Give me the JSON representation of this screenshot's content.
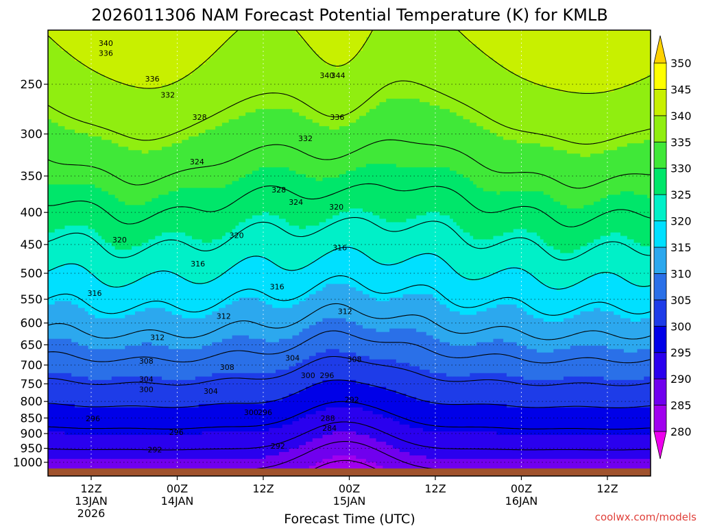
{
  "chart_data": {
    "type": "heatmap",
    "title": "2026011306 NAM Forecast Potential Temperature (K) for KMLB",
    "xlabel": "Forecast Time (UTC)",
    "ylabel": "",
    "y_scale": "log-pressure",
    "ylim": [
      1010,
      205
    ],
    "y_ticks": [
      250,
      300,
      350,
      400,
      450,
      500,
      550,
      600,
      650,
      700,
      750,
      800,
      850,
      900,
      950,
      1000
    ],
    "x_ticks": [
      {
        "label": "12Z",
        "date": "13JAN",
        "year": "2026"
      },
      {
        "label": "00Z",
        "date": "14JAN",
        "year": ""
      },
      {
        "label": "12Z",
        "date": "",
        "year": ""
      },
      {
        "label": "00Z",
        "date": "15JAN",
        "year": ""
      },
      {
        "label": "12Z",
        "date": "",
        "year": ""
      },
      {
        "label": "00Z",
        "date": "16JAN",
        "year": ""
      },
      {
        "label": "12Z",
        "date": "",
        "year": ""
      }
    ],
    "colorbar": {
      "unit": "K",
      "levels": [
        280,
        285,
        290,
        295,
        300,
        305,
        310,
        315,
        320,
        325,
        330,
        335,
        340,
        345,
        350
      ],
      "colors": [
        "#ee00ee",
        "#a000ee",
        "#7000ee",
        "#2a00ee",
        "#0000e8",
        "#1e3ce8",
        "#2a70e8",
        "#2ca8ee",
        "#00e0ff",
        "#00f0c8",
        "#00e66a",
        "#40e838",
        "#90ee10",
        "#c8f000",
        "#ffff00",
        "#ffd200"
      ]
    },
    "contour_labels": [
      {
        "value": 340,
        "t": 0.17,
        "p": 215
      },
      {
        "value": 336,
        "t": 0.17,
        "p": 223
      },
      {
        "value": 336,
        "t": 0.71,
        "p": 245
      },
      {
        "value": 332,
        "t": 0.89,
        "p": 260
      },
      {
        "value": 328,
        "t": 1.26,
        "p": 282
      },
      {
        "value": 340,
        "t": 2.74,
        "p": 242
      },
      {
        "value": 344,
        "t": 2.87,
        "p": 242
      },
      {
        "value": 336,
        "t": 2.86,
        "p": 282
      },
      {
        "value": 332,
        "t": 2.49,
        "p": 305
      },
      {
        "value": 324,
        "t": 1.23,
        "p": 332
      },
      {
        "value": 328,
        "t": 2.18,
        "p": 368
      },
      {
        "value": 324,
        "t": 2.38,
        "p": 385
      },
      {
        "value": 320,
        "t": 2.85,
        "p": 392
      },
      {
        "value": 320,
        "t": 0.33,
        "p": 442
      },
      {
        "value": 320,
        "t": 1.69,
        "p": 435
      },
      {
        "value": 316,
        "t": 1.24,
        "p": 483
      },
      {
        "value": 316,
        "t": 2.89,
        "p": 455
      },
      {
        "value": 316,
        "t": 0.04,
        "p": 538
      },
      {
        "value": 316,
        "t": 2.16,
        "p": 525
      },
      {
        "value": 312,
        "t": 1.54,
        "p": 585
      },
      {
        "value": 312,
        "t": 2.95,
        "p": 575
      },
      {
        "value": 312,
        "t": 0.77,
        "p": 632
      },
      {
        "value": 308,
        "t": 0.64,
        "p": 690
      },
      {
        "value": 308,
        "t": 1.58,
        "p": 705
      },
      {
        "value": 308,
        "t": 3.06,
        "p": 685
      },
      {
        "value": 304,
        "t": 2.34,
        "p": 682
      },
      {
        "value": 304,
        "t": 0.64,
        "p": 737
      },
      {
        "value": 300,
        "t": 0.64,
        "p": 765
      },
      {
        "value": 304,
        "t": 1.39,
        "p": 770
      },
      {
        "value": 300,
        "t": 2.52,
        "p": 727
      },
      {
        "value": 296,
        "t": 2.74,
        "p": 727
      },
      {
        "value": 300,
        "t": 1.86,
        "p": 832
      },
      {
        "value": 296,
        "t": 2.02,
        "p": 832
      },
      {
        "value": 292,
        "t": 3.03,
        "p": 795
      },
      {
        "value": 296,
        "t": 0.02,
        "p": 852
      },
      {
        "value": 288,
        "t": 2.75,
        "p": 850
      },
      {
        "value": 284,
        "t": 2.77,
        "p": 882
      },
      {
        "value": 296,
        "t": 0.99,
        "p": 895
      },
      {
        "value": 292,
        "t": 0.74,
        "p": 955
      },
      {
        "value": 292,
        "t": 2.17,
        "p": 942
      }
    ]
  },
  "footer": {
    "brand": "coolwx.com/models"
  }
}
